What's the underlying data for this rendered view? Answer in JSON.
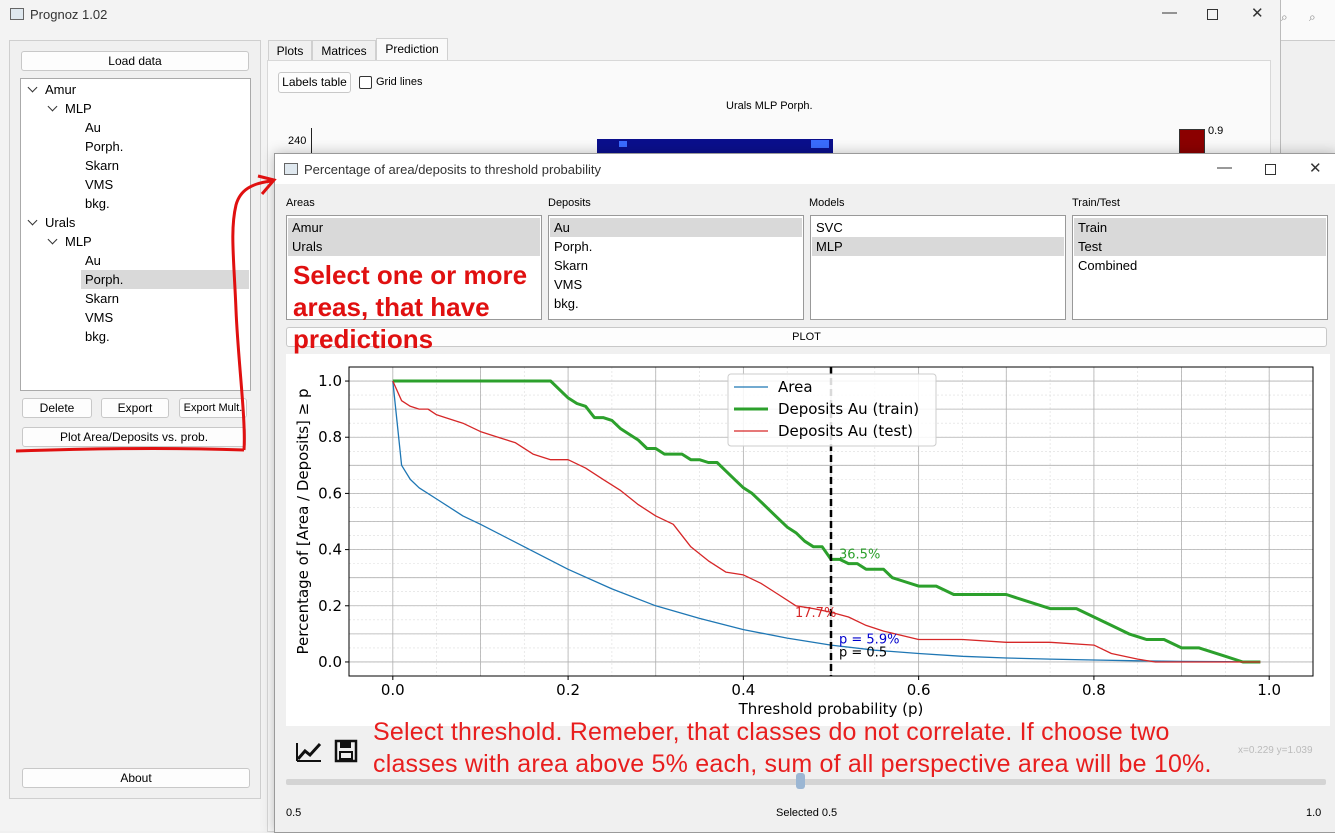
{
  "main_window": {
    "title": "Prognoz 1.02",
    "load_button": "Load data",
    "tree": [
      {
        "label": "Amur",
        "children": [
          {
            "label": "MLP",
            "children": [
              "Au",
              "Porph.",
              "Skarn",
              "VMS",
              "bkg."
            ]
          }
        ]
      },
      {
        "label": "Urals",
        "children": [
          {
            "label": "MLP",
            "children": [
              "Au",
              "Porph.",
              "Skarn",
              "VMS",
              "bkg."
            ]
          }
        ]
      }
    ],
    "tree_flat": {
      "amur": "Amur",
      "amur_mlp": "MLP",
      "a1": "Au",
      "a2": "Porph.",
      "a3": "Skarn",
      "a4": "VMS",
      "a5": "bkg.",
      "urals": "Urals",
      "urals_mlp": "MLP",
      "u1": "Au",
      "u2": "Porph.",
      "u3": "Skarn",
      "u4": "VMS",
      "u5": "bkg."
    },
    "selected_tree_item": "Porph.",
    "buttons": {
      "delete": "Delete",
      "export": "Export",
      "export_mult": "Export Mult.",
      "plot_area": "Plot Area/Deposits vs. prob.",
      "about": "About"
    },
    "tabs": [
      "Plots",
      "Matrices",
      "Prediction"
    ],
    "active_tab": "Prediction",
    "labels_table_button": "Labels table",
    "grid_lines_label": "Grid lines",
    "grid_lines_checked": false,
    "map_title": "Urals MLP Porph.",
    "map_y_tick": "240",
    "colorbar_tick": "0.9"
  },
  "dialog": {
    "title": "Percentage of area/deposits to threshold probability",
    "areas_label": "Areas",
    "areas": [
      {
        "label": "Amur",
        "selected": true
      },
      {
        "label": "Urals",
        "selected": true
      }
    ],
    "deposits_label": "Deposits",
    "deposits": [
      {
        "label": "Au",
        "selected": true
      },
      {
        "label": "Porph.",
        "selected": false
      },
      {
        "label": "Skarn",
        "selected": false
      },
      {
        "label": "VMS",
        "selected": false
      },
      {
        "label": "bkg.",
        "selected": false
      }
    ],
    "models_label": "Models",
    "models": [
      {
        "label": "SVC",
        "selected": false
      },
      {
        "label": "MLP",
        "selected": true
      }
    ],
    "traintest_label": "Train/Test",
    "traintest": [
      {
        "label": "Train",
        "selected": true
      },
      {
        "label": "Test",
        "selected": true
      },
      {
        "label": "Combined",
        "selected": false
      }
    ],
    "plot_button": "PLOT",
    "coords_readout": "x=0.229 y=1.039",
    "slider_min": "0.5",
    "slider_max": "1.0",
    "slider_value": 0.5,
    "selected_text": "Selected 0.5"
  },
  "annotations": {
    "areas_note": [
      "Select one or more",
      "areas, that have",
      "predictions"
    ],
    "threshold_note": [
      "Select threshold. Remeber, that classes do not correlate. If choose two",
      "classes with area above 5% each, sum of all perspective area will be 10%."
    ],
    "color": "#e01010"
  },
  "colors": {
    "area": "#1f77b4",
    "train": "#2ca02c",
    "test": "#d62728",
    "p_label": "#0000cc"
  },
  "chart_data": {
    "type": "line",
    "xlabel": "Threshold probability (p)",
    "ylabel": "Percentage of [Area / Deposits] ≥ p",
    "xlim": [
      -0.05,
      1.05
    ],
    "ylim": [
      -0.05,
      1.05
    ],
    "xticks": [
      "0.0",
      "0.2",
      "0.4",
      "0.6",
      "0.8",
      "1.0"
    ],
    "yticks": [
      "0.0",
      "0.2",
      "0.4",
      "0.6",
      "0.8",
      "1.0"
    ],
    "grid": true,
    "legend_position": "top-center",
    "threshold": 0.5,
    "annotations": {
      "train": "36.5%",
      "test": "17.7%",
      "area": "p = 5.9%",
      "p": "p = 0.5"
    },
    "series": [
      {
        "name": "Area",
        "x": [
          0,
          0.01,
          0.02,
          0.03,
          0.05,
          0.08,
          0.1,
          0.15,
          0.2,
          0.25,
          0.3,
          0.35,
          0.4,
          0.45,
          0.5,
          0.55,
          0.6,
          0.65,
          0.7,
          0.75,
          0.8,
          0.85,
          0.9,
          0.95,
          0.99
        ],
        "y": [
          1.0,
          0.7,
          0.65,
          0.62,
          0.58,
          0.52,
          0.49,
          0.41,
          0.33,
          0.26,
          0.2,
          0.155,
          0.115,
          0.085,
          0.06,
          0.042,
          0.03,
          0.02,
          0.014,
          0.01,
          0.007,
          0.004,
          0.002,
          0.001,
          0.0
        ]
      },
      {
        "name": "Deposits Au (train)",
        "x": [
          0,
          0.1,
          0.18,
          0.2,
          0.21,
          0.22,
          0.23,
          0.24,
          0.25,
          0.26,
          0.27,
          0.28,
          0.29,
          0.3,
          0.31,
          0.32,
          0.33,
          0.34,
          0.35,
          0.36,
          0.37,
          0.38,
          0.39,
          0.4,
          0.41,
          0.42,
          0.43,
          0.44,
          0.45,
          0.46,
          0.47,
          0.48,
          0.49,
          0.5,
          0.51,
          0.52,
          0.53,
          0.54,
          0.55,
          0.56,
          0.57,
          0.58,
          0.6,
          0.62,
          0.64,
          0.7,
          0.72,
          0.75,
          0.78,
          0.8,
          0.82,
          0.84,
          0.86,
          0.88,
          0.9,
          0.92,
          0.95,
          0.97,
          0.99
        ],
        "y": [
          1.0,
          1.0,
          1.0,
          0.94,
          0.92,
          0.91,
          0.87,
          0.87,
          0.86,
          0.83,
          0.81,
          0.79,
          0.76,
          0.76,
          0.74,
          0.74,
          0.74,
          0.72,
          0.72,
          0.71,
          0.71,
          0.68,
          0.65,
          0.62,
          0.6,
          0.57,
          0.54,
          0.51,
          0.48,
          0.46,
          0.43,
          0.41,
          0.41,
          0.365,
          0.365,
          0.35,
          0.35,
          0.33,
          0.33,
          0.33,
          0.3,
          0.29,
          0.27,
          0.27,
          0.24,
          0.24,
          0.22,
          0.19,
          0.19,
          0.16,
          0.13,
          0.1,
          0.08,
          0.08,
          0.05,
          0.05,
          0.02,
          0.0,
          0.0
        ]
      },
      {
        "name": "Deposits Au (test)",
        "x": [
          0,
          0.01,
          0.02,
          0.03,
          0.04,
          0.05,
          0.06,
          0.08,
          0.1,
          0.12,
          0.14,
          0.16,
          0.18,
          0.2,
          0.22,
          0.24,
          0.26,
          0.28,
          0.3,
          0.32,
          0.34,
          0.36,
          0.38,
          0.4,
          0.42,
          0.44,
          0.46,
          0.48,
          0.5,
          0.52,
          0.54,
          0.56,
          0.6,
          0.65,
          0.7,
          0.75,
          0.8,
          0.82,
          0.85,
          0.87,
          0.9,
          0.95,
          0.99
        ],
        "y": [
          1.0,
          0.93,
          0.91,
          0.9,
          0.9,
          0.88,
          0.87,
          0.85,
          0.82,
          0.8,
          0.78,
          0.74,
          0.72,
          0.72,
          0.69,
          0.65,
          0.61,
          0.56,
          0.52,
          0.49,
          0.41,
          0.36,
          0.32,
          0.31,
          0.28,
          0.24,
          0.2,
          0.19,
          0.177,
          0.16,
          0.13,
          0.11,
          0.08,
          0.08,
          0.07,
          0.07,
          0.06,
          0.03,
          0.01,
          0.0,
          0.0,
          0.0,
          0.0
        ]
      }
    ]
  }
}
